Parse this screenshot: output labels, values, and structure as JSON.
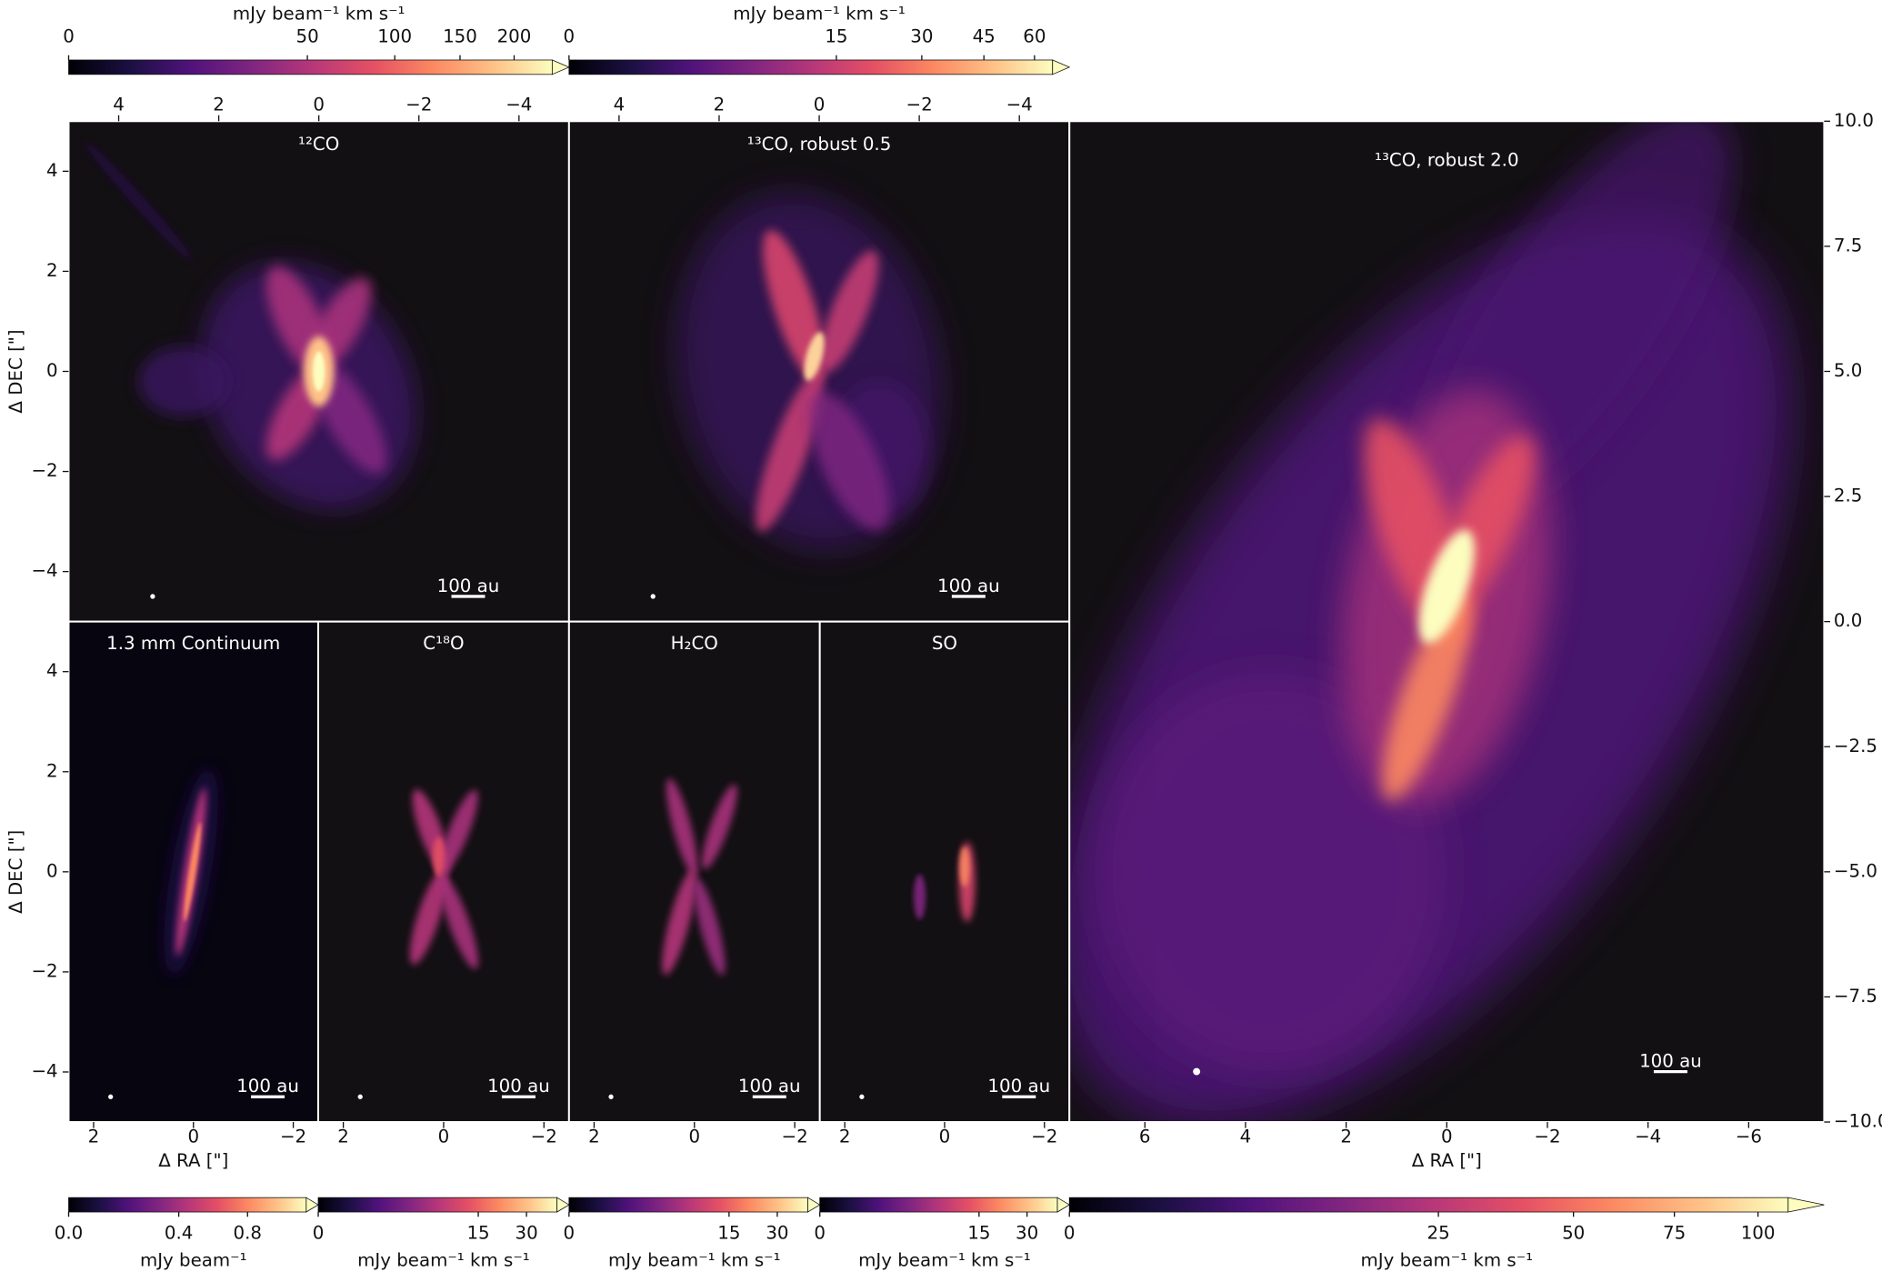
{
  "chart_data": [
    {
      "type": "image",
      "title": "¹²CO",
      "xlim": [
        5,
        -5
      ],
      "ylim": [
        -5,
        5
      ],
      "xticks": [
        4,
        2,
        0,
        {
          "value": -2,
          "label": "−2"
        },
        {
          "value": -4,
          "label": "−4"
        }
      ],
      "yticks": [
        {
          "value": -4,
          "label": "−4"
        },
        {
          "value": -2,
          "label": "−2"
        },
        0,
        2,
        4
      ],
      "ylabel": "Δ DEC [\"]",
      "scalebar": "100 au",
      "colorbar": {
        "label": "mJy beam⁻¹ km s⁻¹",
        "clim": [
          0,
          240
        ],
        "power": 0.45,
        "ticks": [
          0,
          50,
          100,
          150,
          200
        ]
      }
    },
    {
      "type": "image",
      "title": "¹³CO, robust 0.5",
      "xlim": [
        5,
        -5
      ],
      "ylim": [
        -5,
        5
      ],
      "xticks": [
        4,
        2,
        0,
        {
          "value": -2,
          "label": "−2"
        },
        {
          "value": -4,
          "label": "−4"
        }
      ],
      "scalebar": "100 au",
      "colorbar": {
        "label": "mJy beam⁻¹ km s⁻¹",
        "clim": [
          0,
          66
        ],
        "power": 0.4,
        "ticks": [
          0,
          15,
          30,
          45,
          60
        ]
      }
    },
    {
      "type": "image",
      "title": "1.3 mm Continuum",
      "xlim": [
        2.5,
        -2.5
      ],
      "ylim": [
        -5,
        5
      ],
      "xticks": [
        2,
        0,
        {
          "value": -2,
          "label": "−2"
        }
      ],
      "yticks": [
        {
          "value": -4,
          "label": "−4"
        },
        {
          "value": -2,
          "label": "−2"
        },
        0,
        2,
        4
      ],
      "xlabel": "Δ RA [\"]",
      "ylabel": "Δ DEC [\"]",
      "scalebar": "100 au",
      "colorbar": {
        "label": "mJy beam⁻¹",
        "clim": [
          0,
          1.2
        ],
        "power": 0.7,
        "ticks": [
          {
            "value": 0,
            "label": "0.0"
          },
          0.4,
          0.8
        ]
      }
    },
    {
      "type": "image",
      "title": "C¹⁸O",
      "xlim": [
        2.5,
        -2.5
      ],
      "ylim": [
        -5,
        5
      ],
      "xticks": [
        2,
        0,
        {
          "value": -2,
          "label": "−2"
        }
      ],
      "scalebar": "100 au",
      "colorbar": {
        "label": "mJy beam⁻¹ km s⁻¹",
        "clim": [
          0,
          43
        ],
        "power": 0.38,
        "ticks": [
          0,
          15,
          30
        ]
      }
    },
    {
      "type": "image",
      "title": "H₂CO",
      "xlim": [
        2.5,
        -2.5
      ],
      "ylim": [
        -5,
        5
      ],
      "xticks": [
        2,
        0,
        {
          "value": -2,
          "label": "−2"
        }
      ],
      "scalebar": "100 au",
      "colorbar": {
        "label": "mJy beam⁻¹ km s⁻¹",
        "clim": [
          0,
          43
        ],
        "power": 0.38,
        "ticks": [
          0,
          15,
          30
        ]
      }
    },
    {
      "type": "image",
      "title": "SO",
      "xlim": [
        2.5,
        -2.5
      ],
      "ylim": [
        -5,
        5
      ],
      "xticks": [
        2,
        0,
        {
          "value": -2,
          "label": "−2"
        }
      ],
      "scalebar": "100 au",
      "colorbar": {
        "label": "mJy beam⁻¹ km s⁻¹",
        "clim": [
          0,
          43
        ],
        "power": 0.38,
        "ticks": [
          0,
          15,
          30
        ]
      }
    },
    {
      "type": "image",
      "title": "¹³CO, robust 2.0",
      "xlim": [
        7.5,
        -7.5
      ],
      "ylim": [
        -10,
        10
      ],
      "xticks": [
        6,
        4,
        2,
        0,
        {
          "value": -2,
          "label": "−2"
        },
        {
          "value": -4,
          "label": "−4"
        },
        {
          "value": -6,
          "label": "−6"
        }
      ],
      "yticks": [
        {
          "value": -10,
          "label": "−10.0"
        },
        {
          "value": -7.5,
          "label": "−7.5"
        },
        {
          "value": -5,
          "label": "−5.0"
        },
        {
          "value": -2.5,
          "label": "−2.5"
        },
        {
          "value": 0,
          "label": "0.0"
        },
        2.5,
        {
          "value": 5,
          "label": "5.0"
        },
        7.5,
        {
          "value": 10,
          "label": "10.0"
        }
      ],
      "xlabel": "Δ RA [\"]",
      "scalebar": "100 au",
      "colorbar": {
        "label": "mJy beam⁻¹ km s⁻¹",
        "clim": [
          0,
          110
        ],
        "power": 0.45,
        "ticks": [
          0,
          25,
          50,
          75,
          100
        ]
      }
    }
  ]
}
